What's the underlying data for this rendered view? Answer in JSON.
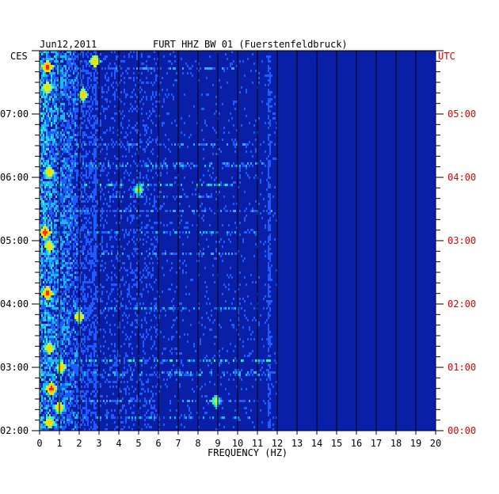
{
  "chart_data": {
    "type": "heatmap",
    "title": "FURT HHZ BW 01 (Fuerstenfeldbruck)",
    "date": "Jun12,2011",
    "xlabel": "FREQUENCY (HZ)",
    "x_range": [
      0,
      20
    ],
    "x_ticks": [
      "0",
      "1",
      "2",
      "3",
      "4",
      "5",
      "6",
      "7",
      "8",
      "9",
      "10",
      "11",
      "12",
      "13",
      "14",
      "15",
      "16",
      "17",
      "18",
      "19",
      "20"
    ],
    "left_axis": {
      "label": "CES",
      "ticks": [
        {
          "label": "02:00",
          "minutes": 0
        },
        {
          "label": "03:00",
          "minutes": 60
        },
        {
          "label": "04:00",
          "minutes": 120
        },
        {
          "label": "05:00",
          "minutes": 180
        },
        {
          "label": "06:00",
          "minutes": 240
        },
        {
          "label": "07:00",
          "minutes": 300
        }
      ]
    },
    "right_axis": {
      "label": "UTC",
      "color": "#e00000",
      "ticks": [
        {
          "label": "00:00",
          "minutes": 0
        },
        {
          "label": "01:00",
          "minutes": 60
        },
        {
          "label": "02:00",
          "minutes": 120
        },
        {
          "label": "03:00",
          "minutes": 180
        },
        {
          "label": "04:00",
          "minutes": 240
        },
        {
          "label": "05:00",
          "minutes": 300
        }
      ]
    },
    "time_range_minutes": [
      0,
      360
    ],
    "grid": true,
    "background_color": "#0a1fa8",
    "colormap": [
      "#0a1fa8",
      "#1f5cff",
      "#19b8ff",
      "#2cf0c8",
      "#c8f03a",
      "#ffd400",
      "#ff2a00"
    ],
    "dominant_band_hz": [
      0,
      3
    ],
    "hot_spots": [
      {
        "hz": 0.4,
        "minutes": 345,
        "level": 6
      },
      {
        "hz": 0.4,
        "minutes": 325,
        "level": 5
      },
      {
        "hz": 2.2,
        "minutes": 318,
        "level": 5
      },
      {
        "hz": 0.5,
        "minutes": 245,
        "level": 5
      },
      {
        "hz": 0.3,
        "minutes": 188,
        "level": 6
      },
      {
        "hz": 0.5,
        "minutes": 175,
        "level": 5
      },
      {
        "hz": 0.4,
        "minutes": 130,
        "level": 6
      },
      {
        "hz": 2.0,
        "minutes": 108,
        "level": 5
      },
      {
        "hz": 0.5,
        "minutes": 78,
        "level": 5
      },
      {
        "hz": 1.1,
        "minutes": 60,
        "level": 5
      },
      {
        "hz": 0.6,
        "minutes": 40,
        "level": 6
      },
      {
        "hz": 1.0,
        "minutes": 22,
        "level": 5
      },
      {
        "hz": 0.5,
        "minutes": 8,
        "level": 5
      },
      {
        "hz": 8.9,
        "minutes": 28,
        "level": 4
      },
      {
        "hz": 5.0,
        "minutes": 228,
        "level": 4
      },
      {
        "hz": 2.8,
        "minutes": 350,
        "level": 5
      }
    ],
    "horizontal_streaks": [
      {
        "minutes": 343,
        "from_hz": 0,
        "to_hz": 10,
        "level": 2
      },
      {
        "minutes": 272,
        "from_hz": 0,
        "to_hz": 11,
        "level": 2
      },
      {
        "minutes": 252,
        "from_hz": 0,
        "to_hz": 12,
        "level": 2
      },
      {
        "minutes": 232,
        "from_hz": 0,
        "to_hz": 10,
        "level": 3
      },
      {
        "minutes": 222,
        "from_hz": 0,
        "to_hz": 9,
        "level": 2
      },
      {
        "minutes": 208,
        "from_hz": 0,
        "to_hz": 12,
        "level": 2
      },
      {
        "minutes": 188,
        "from_hz": 0,
        "to_hz": 11,
        "level": 2
      },
      {
        "minutes": 168,
        "from_hz": 0,
        "to_hz": 10,
        "level": 2
      },
      {
        "minutes": 115,
        "from_hz": 0,
        "to_hz": 11,
        "level": 2
      },
      {
        "minutes": 66,
        "from_hz": 0,
        "to_hz": 12,
        "level": 3
      },
      {
        "minutes": 54,
        "from_hz": 0,
        "to_hz": 12,
        "level": 2
      },
      {
        "minutes": 28,
        "from_hz": 0,
        "to_hz": 11,
        "level": 2
      },
      {
        "minutes": 12,
        "from_hz": 0,
        "to_hz": 11,
        "level": 2
      }
    ],
    "vertical_lines_hz": [
      2.8,
      11.6
    ]
  }
}
